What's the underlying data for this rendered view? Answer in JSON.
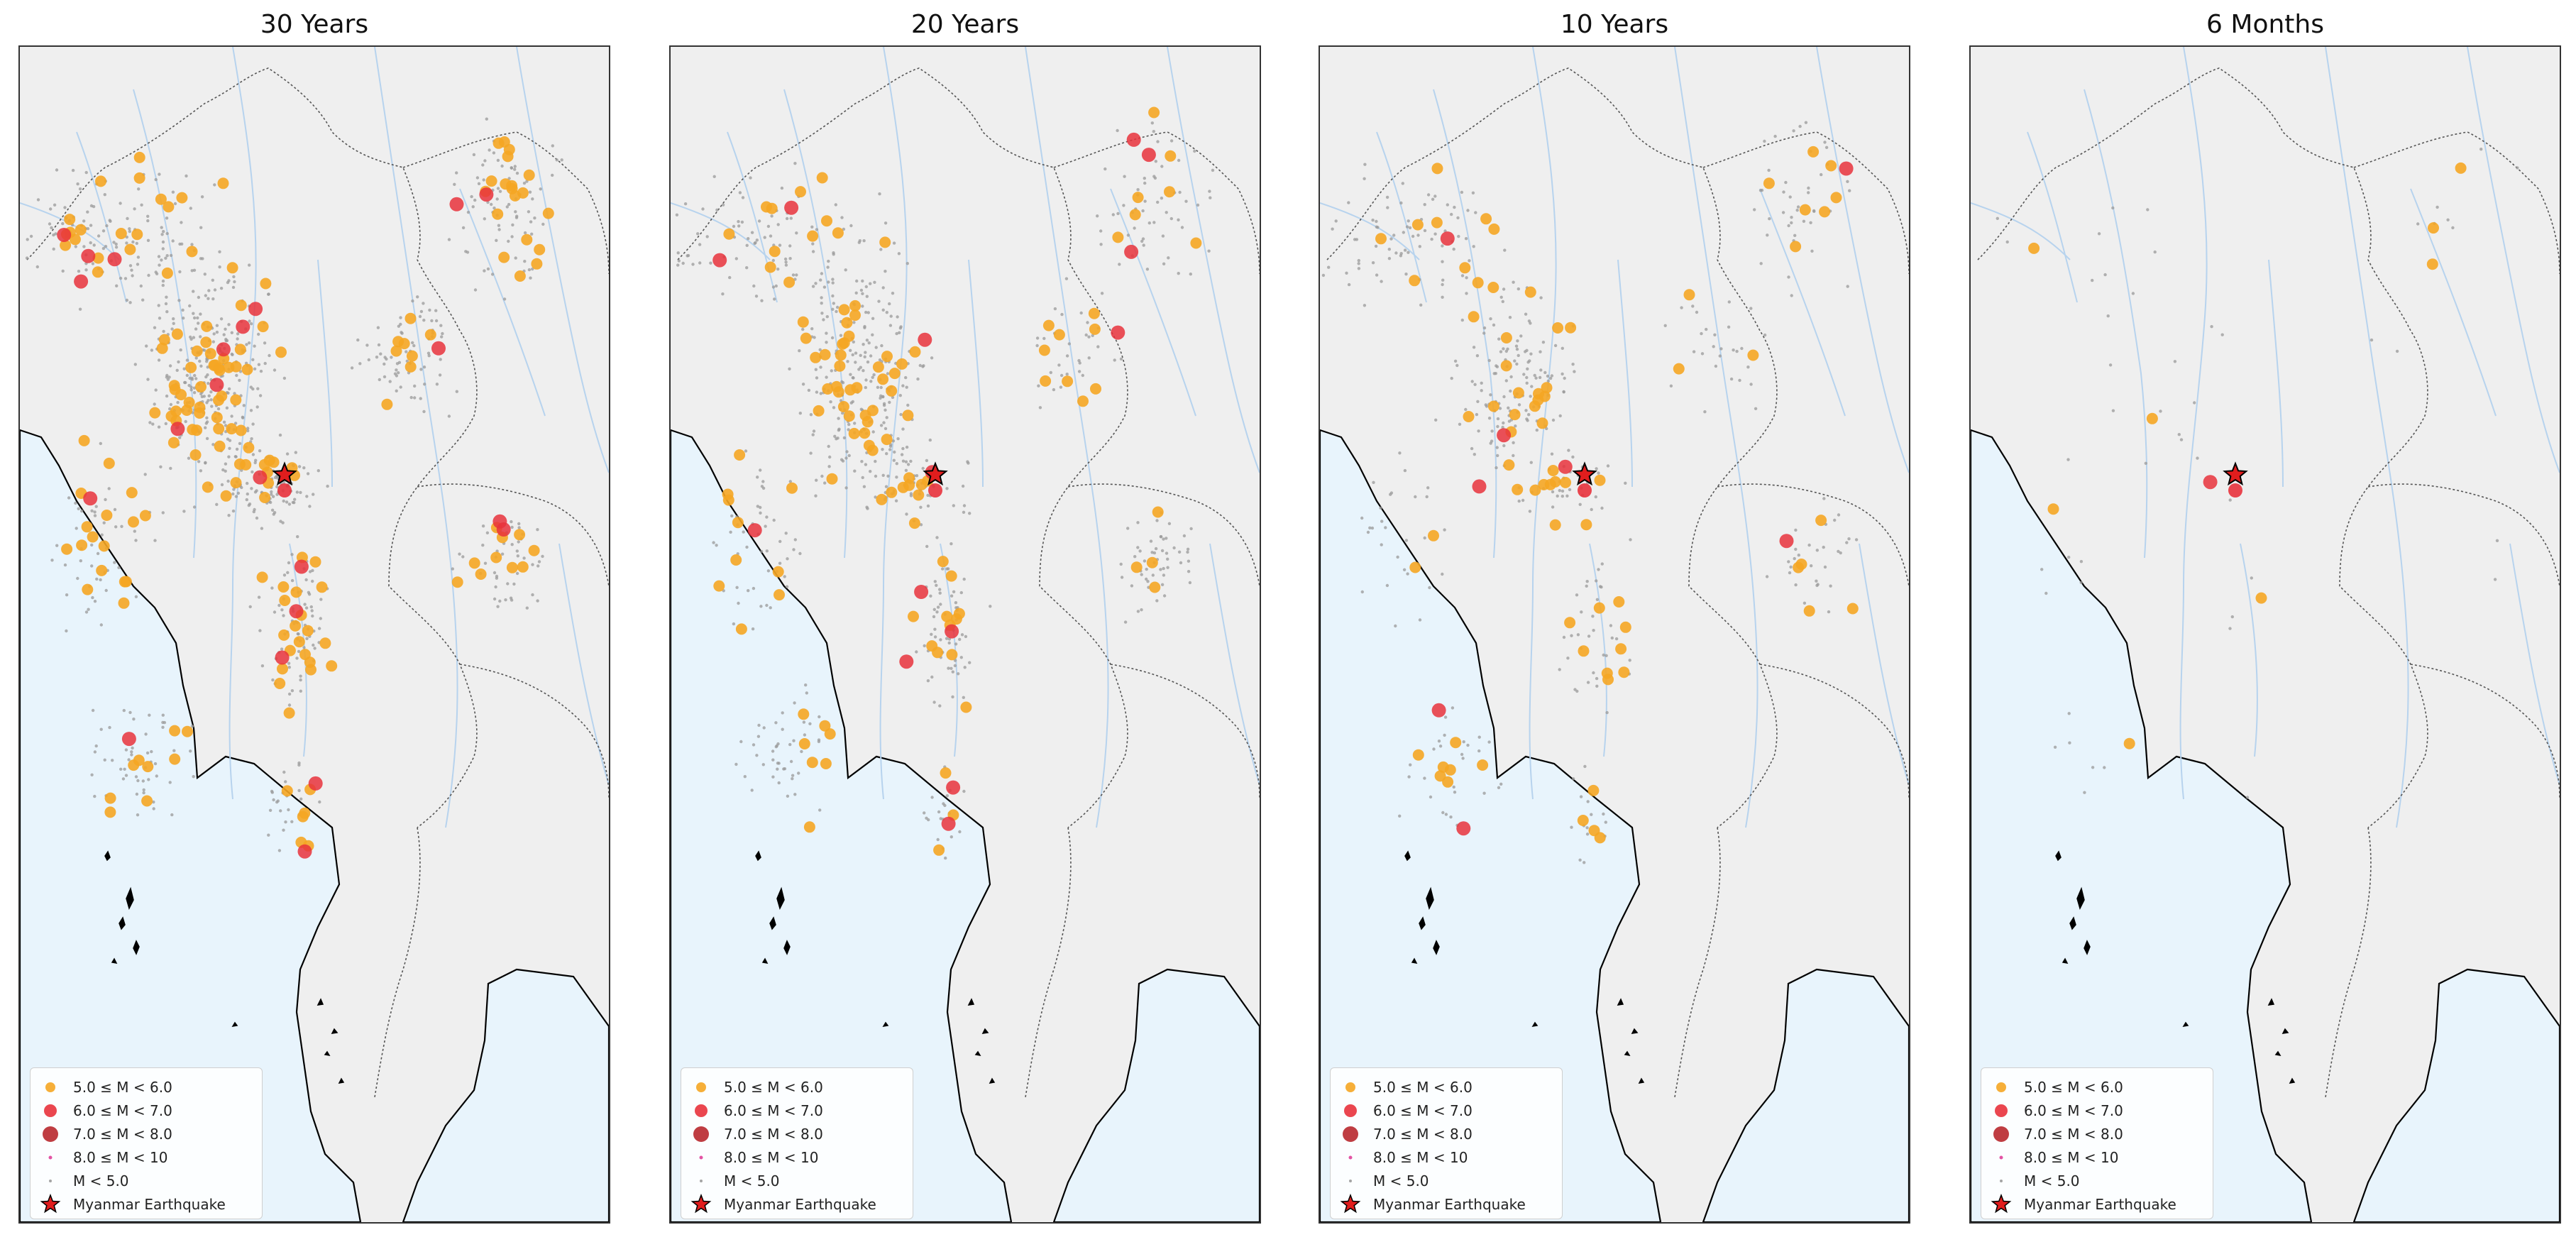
{
  "figure": {
    "panels": [
      {
        "id": "p30y",
        "title": "30 Years"
      },
      {
        "id": "p20y",
        "title": "20 Years"
      },
      {
        "id": "p10y",
        "title": "10 Years"
      },
      {
        "id": "p6m",
        "title": "6 Months"
      }
    ],
    "legend": [
      {
        "key": "m5",
        "label": "5.0 ≤ M < 6.0",
        "color": "#f5a623"
      },
      {
        "key": "m6",
        "label": "6.0 ≤ M < 7.0",
        "color": "#e8323c"
      },
      {
        "key": "m7",
        "label": "7.0 ≤ M < 8.0",
        "color": "#b8282e"
      },
      {
        "key": "m8",
        "label": "8.0 ≤ M < 10",
        "color": "#e0409a"
      },
      {
        "key": "m0",
        "label": "M < 5.0",
        "color": "#9a9a9a"
      },
      {
        "key": "star",
        "label": "Myanmar Earthquake",
        "color": "#e11d1d"
      }
    ],
    "colors": {
      "land": "#efefef",
      "sea": "#e8f4fc",
      "river": "#b7d3ee",
      "coast": "#000000",
      "border": "#555555"
    }
  }
}
